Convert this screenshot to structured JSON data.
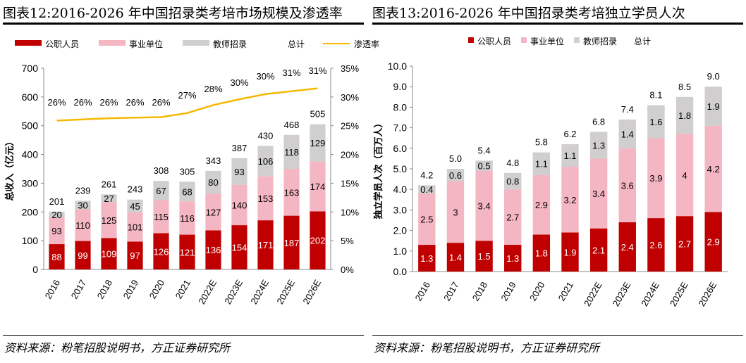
{
  "colors": {
    "civil": "#C00000",
    "institution": "#F4B6C2",
    "teacher": "#D0CECE",
    "rate": "#F5B800"
  },
  "source": "资料来源：粉笔招股说明书，方正证券研究所",
  "chart_data": [
    {
      "type": "bar",
      "stacked": true,
      "title": "图表12:2016-2026 年中国招录类考培市场规模及渗透率",
      "ylabel": "总收入（亿元）",
      "ylim": [
        0,
        700
      ],
      "yticks": [
        0,
        100,
        200,
        300,
        400,
        500,
        600,
        700
      ],
      "y2lim": [
        0,
        35
      ],
      "y2ticks": [
        "0%",
        "5%",
        "10%",
        "15%",
        "20%",
        "25%",
        "30%",
        "35%"
      ],
      "categories": [
        "2016",
        "2017",
        "2018",
        "2019",
        "2020",
        "2021",
        "2022E",
        "2023E",
        "2024E",
        "2025E",
        "2026E"
      ],
      "legend": [
        "公职人员",
        "事业单位",
        "教师招录",
        "总计",
        "渗透率"
      ],
      "series": [
        {
          "name": "公职人员",
          "values": [
            88,
            99,
            109,
            97,
            126,
            121,
            136,
            154,
            171,
            187,
            202
          ]
        },
        {
          "name": "事业单位",
          "values": [
            93,
            110,
            125,
            101,
            115,
            116,
            127,
            140,
            153,
            163,
            174
          ]
        },
        {
          "name": "教师招录",
          "values": [
            20,
            30,
            27,
            45,
            67,
            68,
            80,
            93,
            106,
            118,
            129
          ]
        }
      ],
      "totals": {
        "name": "总计",
        "values": [
          201,
          239,
          261,
          243,
          308,
          305,
          343,
          387,
          430,
          468,
          505
        ]
      },
      "rate": {
        "name": "渗透率",
        "values": [
          26,
          26,
          26,
          26,
          26,
          27,
          28,
          30,
          30,
          31,
          31
        ],
        "labels": [
          "26%",
          "26%",
          "26%",
          "26%",
          "26%",
          "27%",
          "28%",
          "30%",
          "30%",
          "31%",
          "31%"
        ]
      }
    },
    {
      "type": "bar",
      "stacked": true,
      "title": "图表13:2016-2026 年中国招录类考培独立学员人次",
      "ylabel": "独立学员人次（百万人）",
      "ylim": [
        0,
        10
      ],
      "yticks": [
        "0.0",
        "1.0",
        "2.0",
        "3.0",
        "4.0",
        "5.0",
        "6.0",
        "7.0",
        "8.0",
        "9.0",
        "10.0"
      ],
      "categories": [
        "2016",
        "2017",
        "2018",
        "2019",
        "2020",
        "2021",
        "2022E",
        "2023E",
        "2024E",
        "2025E",
        "2026E"
      ],
      "legend": [
        "公职人员",
        "事业单位",
        "教师招录",
        "总计"
      ],
      "series": [
        {
          "name": "公职人员",
          "values": [
            1.3,
            1.4,
            1.5,
            1.3,
            1.8,
            1.9,
            2.1,
            2.4,
            2.6,
            2.7,
            2.9
          ]
        },
        {
          "name": "事业单位",
          "values": [
            2.5,
            3.0,
            3.4,
            2.7,
            2.9,
            3.2,
            3.4,
            3.6,
            3.9,
            4.0,
            4.2
          ]
        },
        {
          "name": "教师招录",
          "values": [
            0.4,
            0.6,
            0.5,
            0.8,
            1.1,
            1.1,
            1.3,
            1.4,
            1.6,
            1.8,
            1.9
          ]
        }
      ],
      "totals": {
        "name": "总计",
        "values": [
          4.2,
          5.0,
          5.4,
          4.8,
          5.8,
          6.2,
          6.8,
          7.4,
          8.1,
          8.5,
          9.0
        ]
      }
    }
  ]
}
